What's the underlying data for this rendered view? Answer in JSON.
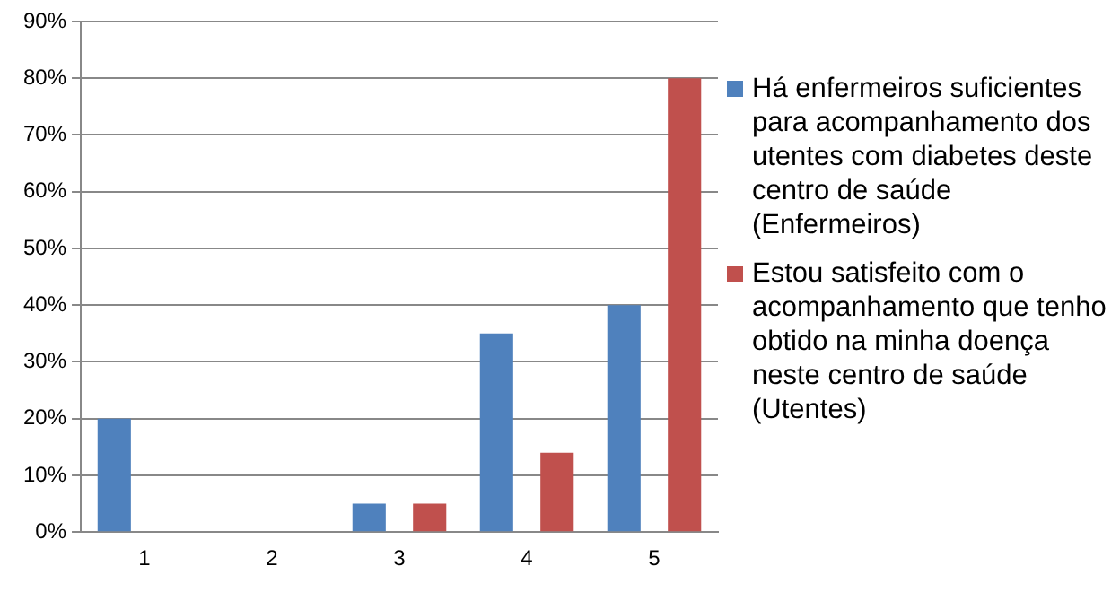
{
  "chart_data": {
    "type": "bar",
    "categories": [
      "1",
      "2",
      "3",
      "4",
      "5"
    ],
    "series": [
      {
        "name": "Há enfermeiros suficientes para acompanhamento dos utentes com diabetes deste centro de saúde (Enfermeiros)",
        "color": "#4f81bd",
        "values": [
          20,
          0,
          5,
          35,
          40
        ]
      },
      {
        "name": "Estou satisfeito com o acompanhamento que tenho obtido na minha doença neste centro de saúde (Utentes)",
        "color": "#c0504d",
        "values": [
          0,
          0,
          5,
          14,
          80
        ]
      }
    ],
    "ylim": [
      0,
      90
    ],
    "yticks": [
      {
        "value": 0,
        "label": "0%"
      },
      {
        "value": 10,
        "label": "10%"
      },
      {
        "value": 20,
        "label": "20%"
      },
      {
        "value": 30,
        "label": "30%"
      },
      {
        "value": 40,
        "label": "40%"
      },
      {
        "value": 50,
        "label": "50%"
      },
      {
        "value": 60,
        "label": "60%"
      },
      {
        "value": 70,
        "label": "70%"
      },
      {
        "value": 80,
        "label": "80%"
      },
      {
        "value": 90,
        "label": "90%"
      }
    ],
    "grid": "y",
    "legend": "right"
  }
}
